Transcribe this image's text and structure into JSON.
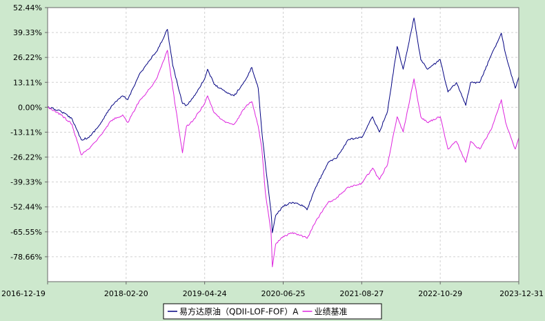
{
  "chart_data": {
    "type": "line",
    "title": "",
    "xlabel": "",
    "ylabel": "",
    "y_tick_labels": [
      "52.44%",
      "39.33%",
      "26.22%",
      "13.11%",
      "0.00%",
      "-13.11%",
      "-26.22%",
      "-39.33%",
      "-52.44%",
      "-65.55%",
      "-78.66%"
    ],
    "y_ticks": [
      52.44,
      39.33,
      26.22,
      13.11,
      0.0,
      -13.11,
      -26.22,
      -39.33,
      -52.44,
      -65.55,
      -78.66
    ],
    "ylim": [
      -91.77,
      52.44
    ],
    "x_tick_labels": [
      "2016-12-19",
      "2018-02-20",
      "2019-04-24",
      "2020-06-25",
      "2021-08-27",
      "2022-10-29",
      "2023-12-31"
    ],
    "xlim": [
      "2016-12-19",
      "2023-12-31"
    ],
    "grid": true,
    "legend_position": "bottom",
    "series": [
      {
        "name": "易方达原油（QDII-LOF-FOF）A",
        "color": "#000080",
        "points": [
          [
            "2016-12-19",
            0.0
          ],
          [
            "2017-03-01",
            -2.0
          ],
          [
            "2017-05-01",
            -6.0
          ],
          [
            "2017-06-20",
            -17.0
          ],
          [
            "2017-08-01",
            -16.0
          ],
          [
            "2017-10-01",
            -9.0
          ],
          [
            "2017-12-01",
            0.5
          ],
          [
            "2018-02-01",
            6.0
          ],
          [
            "2018-03-01",
            4.0
          ],
          [
            "2018-05-01",
            17.0
          ],
          [
            "2018-07-01",
            25.0
          ],
          [
            "2018-08-10",
            30.0
          ],
          [
            "2018-10-03",
            41.0
          ],
          [
            "2018-11-01",
            22.0
          ],
          [
            "2018-12-24",
            2.0
          ],
          [
            "2019-01-15",
            1.0
          ],
          [
            "2019-02-20",
            5.0
          ],
          [
            "2019-04-24",
            15.0
          ],
          [
            "2019-05-10",
            20.0
          ],
          [
            "2019-06-15",
            12.0
          ],
          [
            "2019-08-15",
            8.0
          ],
          [
            "2019-10-01",
            6.0
          ],
          [
            "2019-12-01",
            14.0
          ],
          [
            "2020-01-06",
            21.0
          ],
          [
            "2020-02-10",
            10.0
          ],
          [
            "2020-03-01",
            -13.0
          ],
          [
            "2020-03-20",
            -30.0
          ],
          [
            "2020-04-20",
            -55.0
          ],
          [
            "2020-04-27",
            -66.0
          ],
          [
            "2020-05-15",
            -57.0
          ],
          [
            "2020-06-25",
            -52.0
          ],
          [
            "2020-08-15",
            -50.0
          ],
          [
            "2020-10-15",
            -52.0
          ],
          [
            "2020-11-02",
            -54.0
          ],
          [
            "2020-12-20",
            -42.0
          ],
          [
            "2021-02-25",
            -29.0
          ],
          [
            "2021-04-10",
            -27.0
          ],
          [
            "2021-06-15",
            -17.0
          ],
          [
            "2021-08-27",
            -16.0
          ],
          [
            "2021-10-25",
            -5.0
          ],
          [
            "2021-12-01",
            -13.0
          ],
          [
            "2022-01-15",
            -2.0
          ],
          [
            "2022-03-08",
            32.0
          ],
          [
            "2022-04-10",
            20.0
          ],
          [
            "2022-06-08",
            47.0
          ],
          [
            "2022-07-15",
            25.0
          ],
          [
            "2022-08-20",
            20.0
          ],
          [
            "2022-10-29",
            25.0
          ],
          [
            "2022-12-10",
            8.0
          ],
          [
            "2023-01-25",
            13.0
          ],
          [
            "2023-03-17",
            1.0
          ],
          [
            "2023-04-12",
            13.0
          ],
          [
            "2023-06-01",
            13.0
          ],
          [
            "2023-08-01",
            27.0
          ],
          [
            "2023-09-27",
            39.0
          ],
          [
            "2023-10-20",
            28.0
          ],
          [
            "2023-12-12",
            10.0
          ],
          [
            "2023-12-31",
            16.0
          ]
        ]
      },
      {
        "name": "业绩基准",
        "color": "#dd22dd",
        "points": [
          [
            "2016-12-19",
            0.0
          ],
          [
            "2017-03-01",
            -4.0
          ],
          [
            "2017-05-01",
            -9.0
          ],
          [
            "2017-06-20",
            -25.0
          ],
          [
            "2017-08-01",
            -22.0
          ],
          [
            "2017-10-01",
            -15.0
          ],
          [
            "2017-12-01",
            -7.0
          ],
          [
            "2018-02-01",
            -4.0
          ],
          [
            "2018-03-01",
            -8.0
          ],
          [
            "2018-05-01",
            3.0
          ],
          [
            "2018-07-01",
            10.0
          ],
          [
            "2018-08-10",
            16.0
          ],
          [
            "2018-10-03",
            30.0
          ],
          [
            "2018-11-01",
            10.0
          ],
          [
            "2018-12-24",
            -24.0
          ],
          [
            "2019-01-15",
            -10.0
          ],
          [
            "2019-02-20",
            -7.0
          ],
          [
            "2019-04-24",
            2.0
          ],
          [
            "2019-05-10",
            6.0
          ],
          [
            "2019-06-15",
            -3.0
          ],
          [
            "2019-08-15",
            -8.0
          ],
          [
            "2019-10-01",
            -9.0
          ],
          [
            "2019-12-01",
            0.0
          ],
          [
            "2020-01-06",
            3.0
          ],
          [
            "2020-02-10",
            -10.0
          ],
          [
            "2020-03-01",
            -22.0
          ],
          [
            "2020-03-20",
            -45.0
          ],
          [
            "2020-04-20",
            -66.0
          ],
          [
            "2020-04-27",
            -84.0
          ],
          [
            "2020-05-15",
            -72.0
          ],
          [
            "2020-06-25",
            -68.0
          ],
          [
            "2020-08-15",
            -66.0
          ],
          [
            "2020-10-15",
            -68.0
          ],
          [
            "2020-11-02",
            -69.0
          ],
          [
            "2020-12-20",
            -60.0
          ],
          [
            "2021-02-25",
            -50.0
          ],
          [
            "2021-04-10",
            -48.0
          ],
          [
            "2021-06-15",
            -42.0
          ],
          [
            "2021-08-27",
            -40.0
          ],
          [
            "2021-10-25",
            -32.0
          ],
          [
            "2021-12-01",
            -38.0
          ],
          [
            "2022-01-15",
            -30.0
          ],
          [
            "2022-03-08",
            -5.0
          ],
          [
            "2022-04-10",
            -13.0
          ],
          [
            "2022-06-08",
            15.0
          ],
          [
            "2022-07-15",
            -5.0
          ],
          [
            "2022-08-20",
            -8.0
          ],
          [
            "2022-10-29",
            -5.0
          ],
          [
            "2022-12-10",
            -22.0
          ],
          [
            "2023-01-25",
            -18.0
          ],
          [
            "2023-03-17",
            -29.0
          ],
          [
            "2023-04-12",
            -18.0
          ],
          [
            "2023-06-01",
            -22.0
          ],
          [
            "2023-08-01",
            -12.0
          ],
          [
            "2023-09-27",
            4.0
          ],
          [
            "2023-10-20",
            -8.0
          ],
          [
            "2023-12-12",
            -22.0
          ],
          [
            "2023-12-31",
            -16.0
          ]
        ]
      }
    ]
  }
}
